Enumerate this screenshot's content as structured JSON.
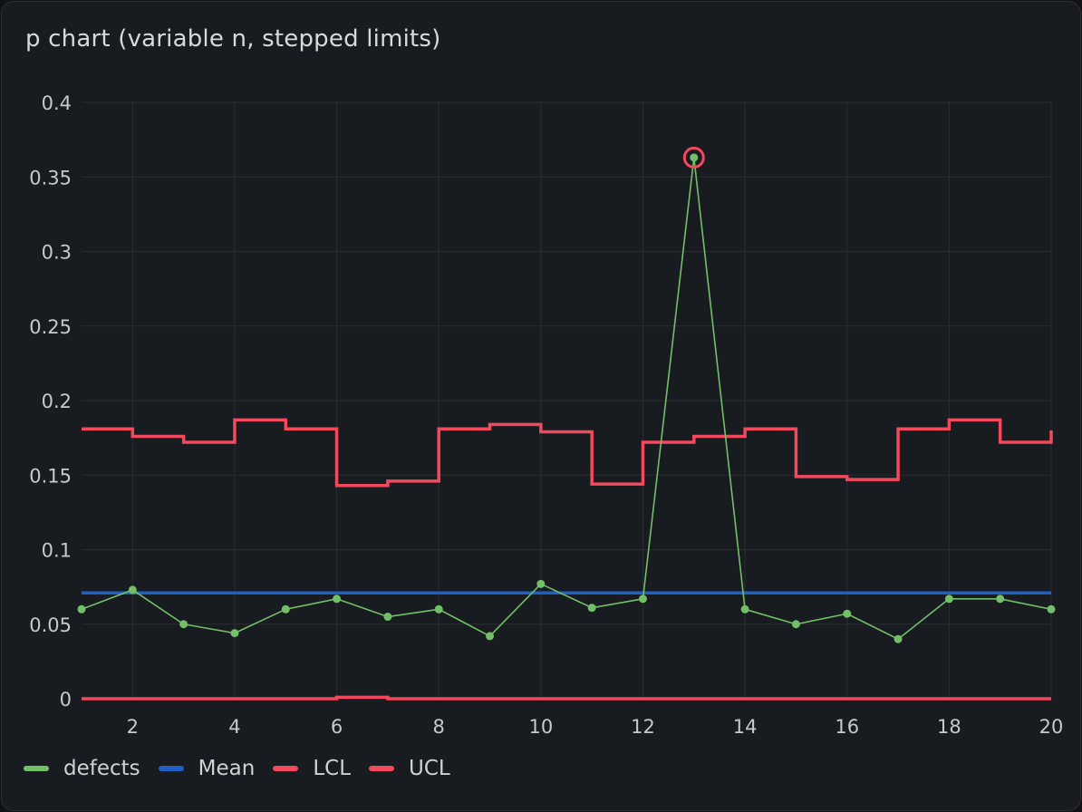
{
  "panel": {
    "title": "p chart (variable n, stepped limits)"
  },
  "chart_data": {
    "type": "line",
    "title": "p chart (variable n, stepped limits)",
    "xlabel": "",
    "ylabel": "",
    "xlim": [
      1,
      20
    ],
    "ylim": [
      0,
      0.4
    ],
    "x": [
      1,
      2,
      3,
      4,
      5,
      6,
      7,
      8,
      9,
      10,
      11,
      12,
      13,
      14,
      15,
      16,
      17,
      18,
      19,
      20
    ],
    "x_ticks": [
      "2",
      "4",
      "6",
      "8",
      "10",
      "12",
      "14",
      "16",
      "18",
      "20"
    ],
    "y_ticks": [
      "0",
      "0.05",
      "0.1",
      "0.15",
      "0.2",
      "0.25",
      "0.3",
      "0.35",
      "0.4"
    ],
    "grid": true,
    "legend_position": "bottom-left",
    "series": [
      {
        "name": "defects",
        "color": "#73bf69",
        "style": "line-points",
        "values": [
          0.06,
          0.073,
          0.05,
          0.044,
          0.06,
          0.067,
          0.055,
          0.06,
          0.042,
          0.077,
          0.061,
          0.067,
          0.363,
          0.06,
          0.05,
          0.057,
          0.04,
          0.067,
          0.067,
          0.06
        ]
      },
      {
        "name": "Mean",
        "color": "#1f60c4",
        "style": "line",
        "values": [
          0.071,
          0.071,
          0.071,
          0.071,
          0.071,
          0.071,
          0.071,
          0.071,
          0.071,
          0.071,
          0.071,
          0.071,
          0.071,
          0.071,
          0.071,
          0.071,
          0.071,
          0.071,
          0.071,
          0.071
        ]
      },
      {
        "name": "LCL",
        "color": "#f2495c",
        "style": "step",
        "values": [
          0,
          0,
          0,
          0,
          0,
          0.001,
          0,
          0,
          0,
          0,
          0,
          0,
          0,
          0,
          0,
          0,
          0,
          0,
          0,
          0
        ]
      },
      {
        "name": "UCL",
        "color": "#f2495c",
        "style": "step",
        "values": [
          0.181,
          0.176,
          0.172,
          0.187,
          0.181,
          0.143,
          0.146,
          0.181,
          0.184,
          0.179,
          0.144,
          0.172,
          0.176,
          0.181,
          0.149,
          0.147,
          0.181,
          0.187,
          0.172,
          0.18
        ]
      }
    ],
    "highlights": [
      {
        "series": "defects",
        "x": 13,
        "y": 0.363,
        "color": "#f2495c"
      }
    ]
  }
}
